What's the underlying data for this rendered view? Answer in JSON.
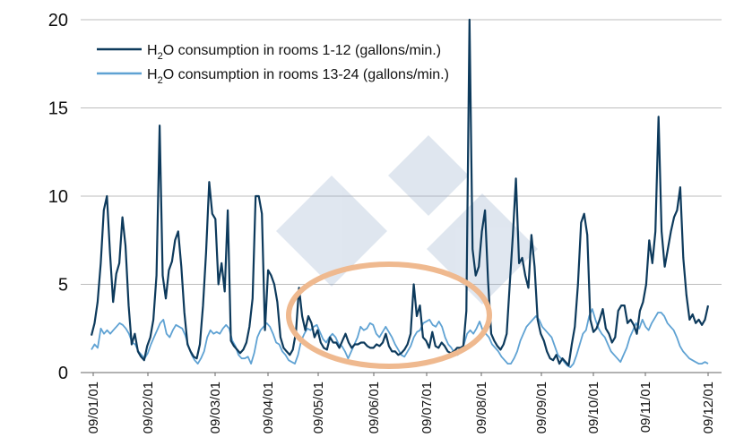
{
  "chart_data": {
    "type": "line",
    "title": "",
    "xlabel": "",
    "ylabel": "",
    "ylim": [
      0,
      20
    ],
    "y_ticks": [
      "0",
      "5",
      "10",
      "15",
      "20"
    ],
    "x_ticks": [
      "09/01/01",
      "09/02/01",
      "09/03/01",
      "09/04/01",
      "09/05/01",
      "09/06/01",
      "09/07/01",
      "09/08/01",
      "09/09/01",
      "09/10/01",
      "09/11/01",
      "09/12/01"
    ],
    "grid": "horizontal",
    "legend": "top-left",
    "watermark": "333 logo",
    "annotation": "orange ellipse highlighting 09/05/01 to 09/08/01",
    "series": [
      {
        "name_parts": {
          "pre": "H",
          "sub": "2",
          "post": "O consumption in rooms 1-12 (gallons/min.)"
        },
        "color": "#0d3a5c",
        "values": [
          2.1,
          2.8,
          4.0,
          6.2,
          9.2,
          10.0,
          6.8,
          4.0,
          5.6,
          6.2,
          8.8,
          7.2,
          3.8,
          1.6,
          2.2,
          1.2,
          0.9,
          0.7,
          1.5,
          2.0,
          3.0,
          5.5,
          14.0,
          5.5,
          4.2,
          5.8,
          6.3,
          7.5,
          8.0,
          6.0,
          3.4,
          1.6,
          1.2,
          0.9,
          0.8,
          1.6,
          3.8,
          6.8,
          10.8,
          9.0,
          8.7,
          5.0,
          6.2,
          4.6,
          9.2,
          1.8,
          1.5,
          1.3,
          1.1,
          1.3,
          1.7,
          2.6,
          4.2,
          10.0,
          10.0,
          9.0,
          2.4,
          5.8,
          5.5,
          5.0,
          4.0,
          2.0,
          1.4,
          1.2,
          1.0,
          1.3,
          2.3,
          4.8,
          3.2,
          2.4,
          3.2,
          2.8,
          2.0,
          2.4,
          1.7,
          1.4,
          1.3,
          2.0,
          1.7,
          1.7,
          1.4,
          1.8,
          2.2,
          1.7,
          1.4,
          1.6,
          1.6,
          1.7,
          1.7,
          1.5,
          1.4,
          1.4,
          1.6,
          1.5,
          1.7,
          2.2,
          1.5,
          1.2,
          1.2,
          1.0,
          1.1,
          1.3,
          1.6,
          2.2,
          5.0,
          3.2,
          3.8,
          2.0,
          1.8,
          1.4,
          2.3,
          1.5,
          1.4,
          1.7,
          1.5,
          1.2,
          1.1,
          1.2,
          1.4,
          1.4,
          1.5,
          3.5,
          20.0,
          7.0,
          5.5,
          6.0,
          8.0,
          9.2,
          5.2,
          2.2,
          1.8,
          1.5,
          1.3,
          1.6,
          2.2,
          5.0,
          7.8,
          11.0,
          6.2,
          6.5,
          5.5,
          4.8,
          7.8,
          6.0,
          3.0,
          2.2,
          1.8,
          1.2,
          0.8,
          0.7,
          1.0,
          0.5,
          0.8,
          0.6,
          0.4,
          1.6,
          2.6,
          5.0,
          8.5,
          9.0,
          7.8,
          3.0,
          2.3,
          2.5,
          3.0,
          3.6,
          2.5,
          2.2,
          1.7,
          2.0,
          3.5,
          3.8,
          3.8,
          2.8,
          3.0,
          2.7,
          2.2,
          3.5,
          4.0,
          5.0,
          7.5,
          6.2,
          8.0,
          14.5,
          8.0,
          6.0,
          7.0,
          8.0,
          8.8,
          9.2,
          10.5,
          6.5,
          4.4,
          3.0,
          3.3,
          2.8,
          3.0,
          2.7,
          3.0,
          3.8
        ]
      },
      {
        "name_parts": {
          "pre": "H",
          "sub": "2",
          "post": "O consumption in rooms 13-24 (gallons/min.)"
        },
        "color": "#5fa2d3",
        "values": [
          1.3,
          1.6,
          1.4,
          2.5,
          2.2,
          2.4,
          2.2,
          2.4,
          2.6,
          2.8,
          2.7,
          2.5,
          2.2,
          1.7,
          1.6,
          1.2,
          1.0,
          0.8,
          1.1,
          1.6,
          2.0,
          2.4,
          2.8,
          3.0,
          2.2,
          2.0,
          2.4,
          2.7,
          2.6,
          2.5,
          2.1,
          1.5,
          1.0,
          0.7,
          0.5,
          0.8,
          1.2,
          2.0,
          2.4,
          2.2,
          2.3,
          2.2,
          2.5,
          2.7,
          2.5,
          1.8,
          1.5,
          1.0,
          0.8,
          0.8,
          0.9,
          0.5,
          1.1,
          2.0,
          2.4,
          2.6,
          2.8,
          2.6,
          2.2,
          1.7,
          1.6,
          1.2,
          1.0,
          0.7,
          0.6,
          0.5,
          1.0,
          1.8,
          2.2,
          2.5,
          2.4,
          2.6,
          2.7,
          2.3,
          1.9,
          1.7,
          2.0,
          2.2,
          2.0,
          1.6,
          1.5,
          1.2,
          0.8,
          1.2,
          1.6,
          2.0,
          2.6,
          2.4,
          2.5,
          2.8,
          2.7,
          2.2,
          2.0,
          2.3,
          2.6,
          2.3,
          2.0,
          1.6,
          1.3,
          1.0,
          0.9,
          1.2,
          1.5,
          2.0,
          2.3,
          2.4,
          2.8,
          2.9,
          3.0,
          2.7,
          2.6,
          2.9,
          2.6,
          2.0,
          1.6,
          1.4,
          1.1,
          1.0,
          1.3,
          1.6,
          2.2,
          2.4,
          2.2,
          2.5,
          2.9,
          2.4,
          2.2,
          2.0,
          1.6,
          1.4,
          1.2,
          0.9,
          0.7,
          0.5,
          0.5,
          0.8,
          1.2,
          1.8,
          2.2,
          2.6,
          2.8,
          3.0,
          3.2,
          3.0,
          2.6,
          2.4,
          2.2,
          2.0,
          1.5,
          1.0,
          0.8,
          0.6,
          0.4,
          0.3,
          0.5,
          1.0,
          1.6,
          2.2,
          2.4,
          3.2,
          3.6,
          3.0,
          2.5,
          2.2,
          2.0,
          1.6,
          1.2,
          1.0,
          0.8,
          0.6,
          1.0,
          1.4,
          2.0,
          2.4,
          2.8,
          2.5,
          3.0,
          2.6,
          2.4,
          2.8,
          3.1,
          3.4,
          3.4,
          3.2,
          2.8,
          2.6,
          2.4,
          2.0,
          1.5,
          1.2,
          1.0,
          0.8,
          0.7,
          0.6,
          0.5,
          0.5,
          0.6,
          0.5
        ]
      }
    ]
  }
}
